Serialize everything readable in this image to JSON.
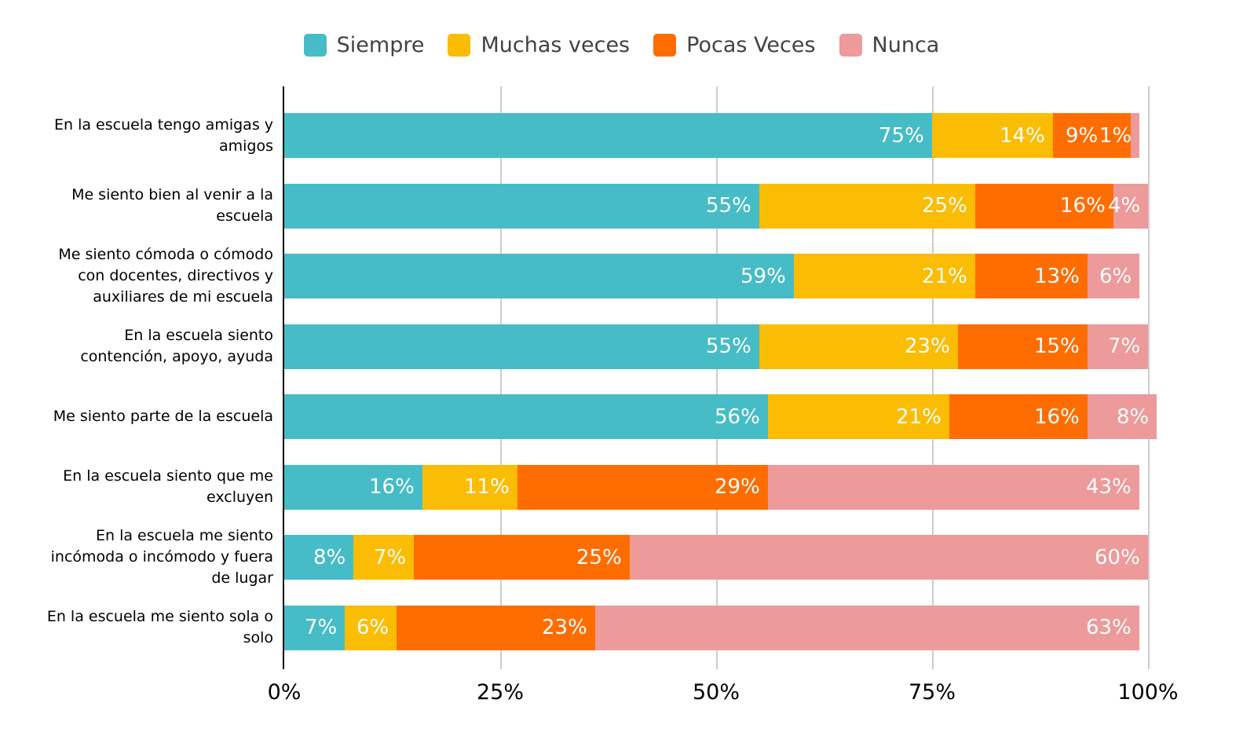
{
  "chart_data": {
    "type": "bar",
    "variant": "stacked-horizontal-percent",
    "orientation": "horizontal",
    "legend_position": "top",
    "grid": true,
    "xlim": [
      0,
      100
    ],
    "x_ticks": [
      "0%",
      "25%",
      "50%",
      "75%",
      "100%"
    ],
    "value_suffix": "%",
    "categories": [
      "En la escuela tengo amigas y\namigos",
      "Me siento bien al venir a la\nescuela",
      "Me siento cómoda o cómodo\ncon docentes, directivos y\nauxiliares de mi escuela",
      "En la escuela siento\ncontención, apoyo, ayuda",
      "Me siento parte de la escuela",
      "En la escuela siento que me\nexcluyen",
      "En la escuela me siento\nincómoda o incómodo y fuera\nde lugar",
      "En la escuela me siento sola o\nsolo"
    ],
    "series": [
      {
        "name": "Siempre",
        "color": "#46BCC6",
        "values": [
          75,
          55,
          59,
          55,
          56,
          16,
          8,
          7
        ]
      },
      {
        "name": "Muchas veces",
        "color": "#FBBC04",
        "values": [
          14,
          25,
          21,
          23,
          21,
          11,
          7,
          6
        ]
      },
      {
        "name": "Pocas Veces",
        "color": "#FF6D01",
        "values": [
          9,
          16,
          13,
          15,
          16,
          29,
          25,
          23
        ]
      },
      {
        "name": "Nunca",
        "color": "#EC9A9A",
        "values": [
          1,
          4,
          6,
          7,
          8,
          43,
          60,
          63
        ]
      }
    ]
  },
  "styles": {
    "gridline_color": "#cccccc",
    "axis_line_color": "#000000",
    "bar_label_color": "#ffffff",
    "category_label_color": "#000000",
    "legend_text_color": "#424242",
    "tick_label_color": "#000000"
  }
}
